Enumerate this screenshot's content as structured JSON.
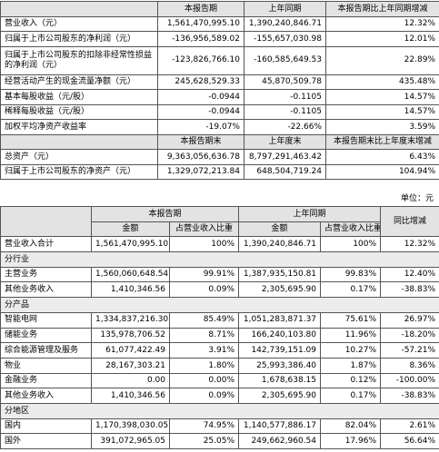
{
  "table1": {
    "header": [
      "本报告期",
      "上年同期",
      "本报告期比上年同期增减"
    ],
    "rows": [
      [
        "营业收入（元）",
        "1,561,470,995.10",
        "1,390,240,846.71",
        "12.32%"
      ],
      [
        "归属于上市公司股东的净利润（元）",
        "-136,956,589.02",
        "-155,657,030.98",
        "12.01%"
      ],
      [
        "归属于上市公司股东的扣除非经常性损益的净利润（元）",
        "-123,826,766.10",
        "-160,585,649.53",
        "22.89%"
      ],
      [
        "经营活动产生的现金流量净额（元）",
        "245,628,529.33",
        "45,870,509.78",
        "435.48%"
      ],
      [
        "基本每股收益（元/股）",
        "-0.0944",
        "-0.1105",
        "14.57%"
      ],
      [
        "稀释每股收益（元/股）",
        "-0.0944",
        "-0.1105",
        "14.57%"
      ],
      [
        "加权平均净资产收益率",
        "-19.07%",
        "-22.66%",
        "3.59%"
      ]
    ],
    "header2": [
      "本报告期末",
      "上年度末",
      "本报告期末比上年度末增减"
    ],
    "rows2": [
      [
        "总资产（元）",
        "9,363,056,636.78",
        "8,797,291,463.42",
        "6.43%"
      ],
      [
        "归属于上市公司股东的净资产（元）",
        "1,329,072,213.84",
        "648,504,719.24",
        "104.94%"
      ]
    ]
  },
  "unit": "单位：元",
  "table2": {
    "top_header": [
      "本报告期",
      "上年同期",
      "同比增减"
    ],
    "sub_header": [
      "金额",
      "占营业收入比重",
      "金额",
      "占营业收入比重"
    ],
    "rows": [
      [
        "营业收入合计",
        "1,561,470,995.10",
        "100%",
        "1,390,240,846.71",
        "100%",
        "12.32%"
      ],
      [
        "分行业"
      ],
      [
        "主营业务",
        "1,560,060,648.54",
        "99.91%",
        "1,387,935,150.81",
        "99.83%",
        "12.40%"
      ],
      [
        "其他业务收入",
        "1,410,346.56",
        "0.09%",
        "2,305,695.90",
        "0.17%",
        "-38.83%"
      ],
      [
        "分产品"
      ],
      [
        "智能电网",
        "1,334,837,216.30",
        "85.49%",
        "1,051,283,871.37",
        "75.61%",
        "26.97%"
      ],
      [
        "储能业务",
        "135,978,706.52",
        "8.71%",
        "166,240,103.80",
        "11.96%",
        "-18.20%"
      ],
      [
        "综合能源管理及服务",
        "61,077,422.49",
        "3.91%",
        "142,739,151.09",
        "10.27%",
        "-57.21%"
      ],
      [
        "物业",
        "28,167,303.21",
        "1.80%",
        "25,993,386.40",
        "1.87%",
        "8.36%"
      ],
      [
        "金融业务",
        "0.00",
        "0.00%",
        "1,678,638.15",
        "0.12%",
        "-100.00%"
      ],
      [
        "其他业务收入",
        "1,410,346.56",
        "0.09%",
        "2,305,695.90",
        "0.17%",
        "-38.83%"
      ],
      [
        "分地区"
      ],
      [
        "国内",
        "1,170,398,030.05",
        "74.95%",
        "1,140,577,886.17",
        "82.04%",
        "2.61%"
      ],
      [
        "国外",
        "391,072,965.05",
        "25.05%",
        "249,662,960.54",
        "17.96%",
        "56.64%"
      ]
    ]
  }
}
